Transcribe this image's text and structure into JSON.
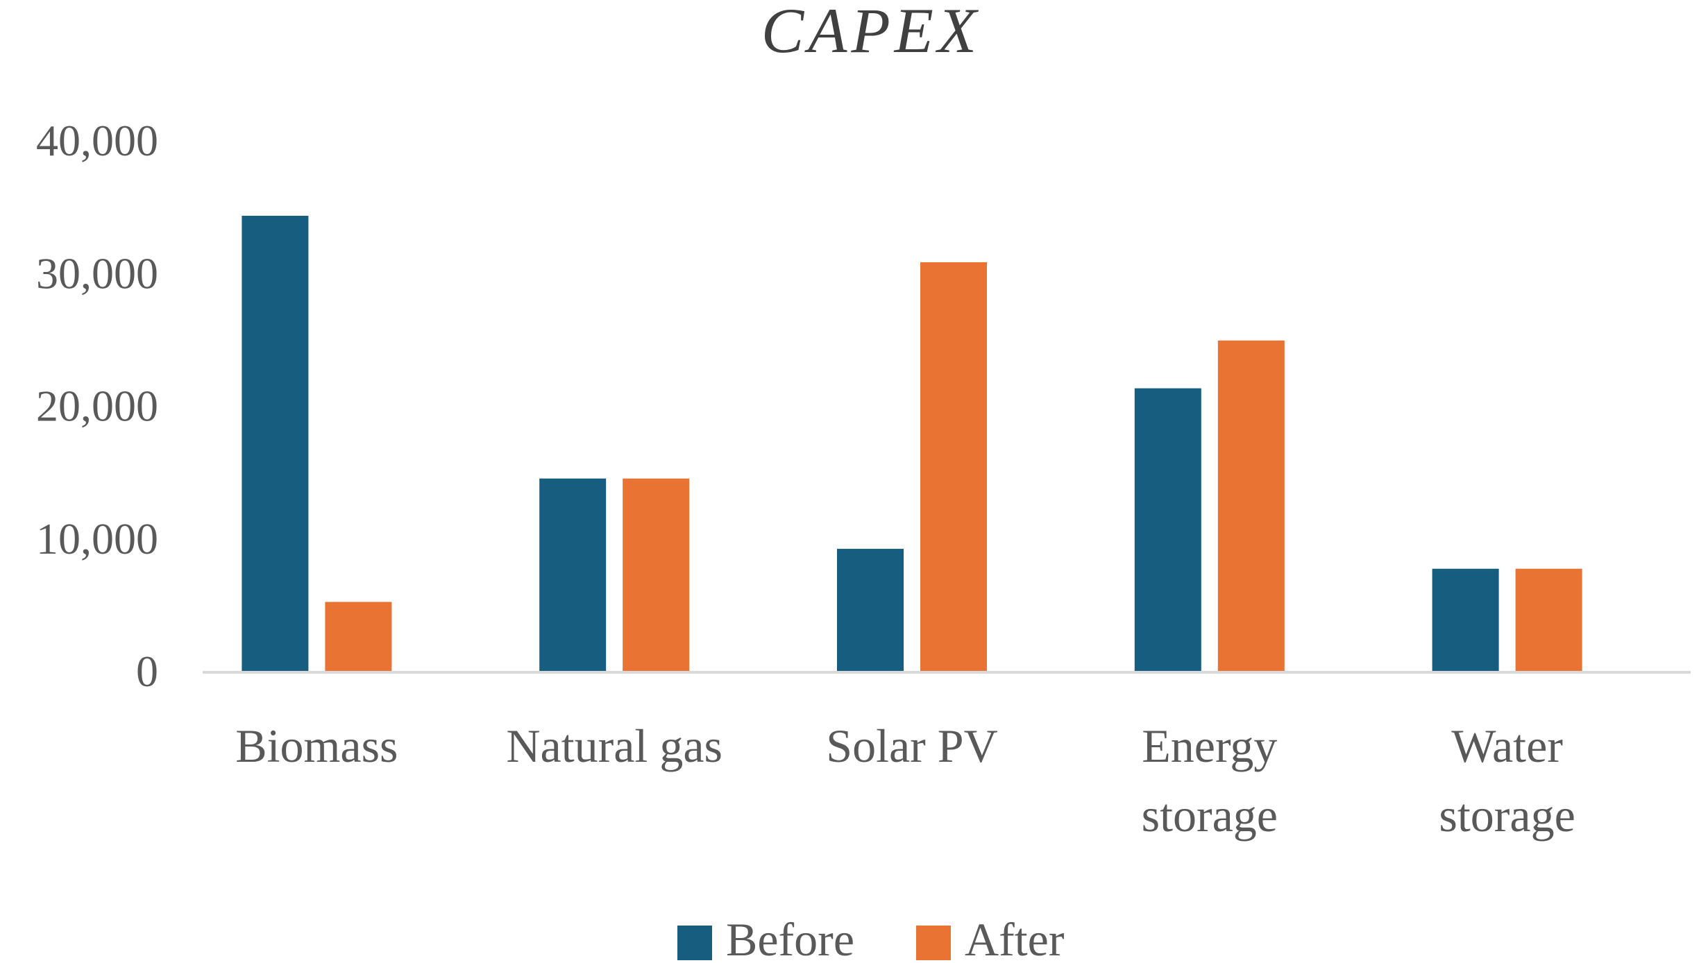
{
  "chart_data": {
    "type": "bar",
    "title": "CAPEX",
    "categories": [
      [
        "Biomass"
      ],
      [
        "Natural gas"
      ],
      [
        "Solar PV"
      ],
      [
        "Energy",
        "storage"
      ],
      [
        "Water",
        "storage"
      ]
    ],
    "series": [
      {
        "name": "Before",
        "color": "#175d80",
        "values": [
          34300,
          14500,
          9200,
          21300,
          7700
        ]
      },
      {
        "name": "After",
        "color": "#e87333",
        "values": [
          5200,
          14500,
          30800,
          24900,
          7700
        ]
      }
    ],
    "ylim": [
      0,
      40000
    ],
    "yticks": [
      0,
      10000,
      20000,
      30000,
      40000
    ],
    "ytick_labels": [
      "0",
      "10,000",
      "20,000",
      "30,000",
      "40,000"
    ],
    "xlabel": "",
    "ylabel": "",
    "grid": false,
    "legend": "bottom",
    "axis_color": "#d9d9d9"
  }
}
